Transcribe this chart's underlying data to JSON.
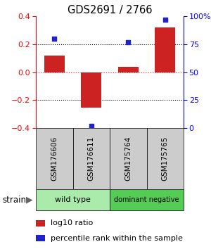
{
  "title": "GDS2691 / 2766",
  "samples": [
    "GSM176606",
    "GSM176611",
    "GSM175764",
    "GSM175765"
  ],
  "log10_ratio": [
    0.12,
    -0.255,
    0.04,
    0.32
  ],
  "percentile_rank": [
    80,
    2,
    77,
    97
  ],
  "bar_color": "#cc2222",
  "dot_color": "#2222cc",
  "ylim_left": [
    -0.4,
    0.4
  ],
  "ylim_right": [
    0,
    100
  ],
  "yticks_left": [
    -0.4,
    -0.2,
    0.0,
    0.2,
    0.4
  ],
  "yticks_right": [
    0,
    25,
    50,
    75,
    100
  ],
  "ytick_labels_right": [
    "0",
    "25",
    "50",
    "75",
    "100%"
  ],
  "groups": [
    {
      "label": "wild type",
      "samples": [
        0,
        1
      ],
      "color": "#aaeaaa"
    },
    {
      "label": "dominant negative",
      "samples": [
        2,
        3
      ],
      "color": "#55cc55"
    }
  ],
  "strain_label": "strain",
  "legend_bar_label": "log10 ratio",
  "legend_dot_label": "percentile rank within the sample",
  "sample_box_color": "#cccccc",
  "zero_line_color": "#dd3333",
  "bar_width": 0.55
}
